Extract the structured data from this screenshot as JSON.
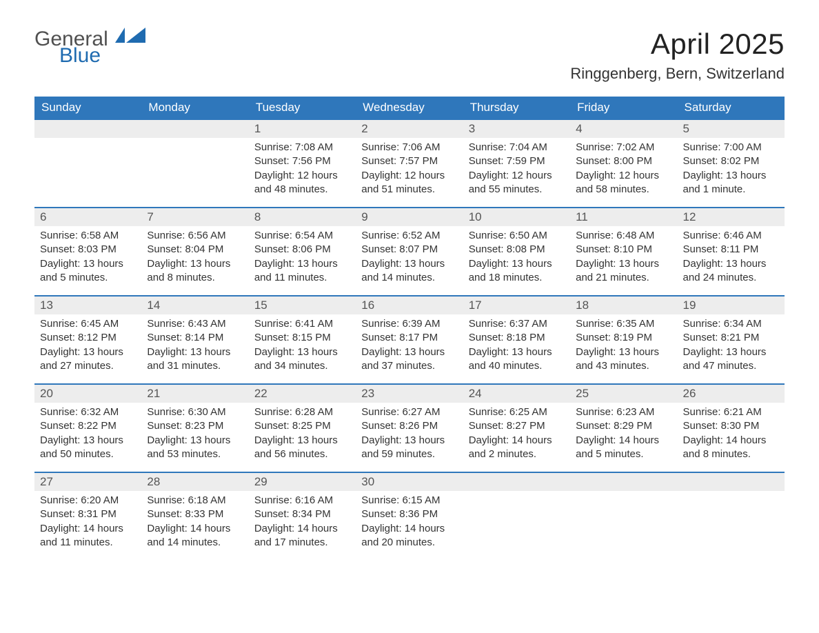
{
  "logo": {
    "word1": "General",
    "word2": "Blue"
  },
  "title": "April 2025",
  "location": "Ringgenberg, Bern, Switzerland",
  "colors": {
    "header_bg": "#2f77bb",
    "header_text": "#ffffff",
    "daynum_bg": "#ededed",
    "row_divider": "#2f77bb",
    "logo_word1": "#505050",
    "logo_word2": "#1f6bb0",
    "body_text": "#333333",
    "page_bg": "#ffffff"
  },
  "typography": {
    "title_fontsize_pt": 32,
    "location_fontsize_pt": 17,
    "header_fontsize_pt": 13,
    "daynum_fontsize_pt": 13,
    "body_fontsize_pt": 11
  },
  "weekdays": [
    "Sunday",
    "Monday",
    "Tuesday",
    "Wednesday",
    "Thursday",
    "Friday",
    "Saturday"
  ],
  "weeks": [
    [
      {
        "n": "",
        "sunrise": "",
        "sunset": "",
        "daylight": ""
      },
      {
        "n": "",
        "sunrise": "",
        "sunset": "",
        "daylight": ""
      },
      {
        "n": "1",
        "sunrise": "Sunrise: 7:08 AM",
        "sunset": "Sunset: 7:56 PM",
        "daylight": "Daylight: 12 hours and 48 minutes."
      },
      {
        "n": "2",
        "sunrise": "Sunrise: 7:06 AM",
        "sunset": "Sunset: 7:57 PM",
        "daylight": "Daylight: 12 hours and 51 minutes."
      },
      {
        "n": "3",
        "sunrise": "Sunrise: 7:04 AM",
        "sunset": "Sunset: 7:59 PM",
        "daylight": "Daylight: 12 hours and 55 minutes."
      },
      {
        "n": "4",
        "sunrise": "Sunrise: 7:02 AM",
        "sunset": "Sunset: 8:00 PM",
        "daylight": "Daylight: 12 hours and 58 minutes."
      },
      {
        "n": "5",
        "sunrise": "Sunrise: 7:00 AM",
        "sunset": "Sunset: 8:02 PM",
        "daylight": "Daylight: 13 hours and 1 minute."
      }
    ],
    [
      {
        "n": "6",
        "sunrise": "Sunrise: 6:58 AM",
        "sunset": "Sunset: 8:03 PM",
        "daylight": "Daylight: 13 hours and 5 minutes."
      },
      {
        "n": "7",
        "sunrise": "Sunrise: 6:56 AM",
        "sunset": "Sunset: 8:04 PM",
        "daylight": "Daylight: 13 hours and 8 minutes."
      },
      {
        "n": "8",
        "sunrise": "Sunrise: 6:54 AM",
        "sunset": "Sunset: 8:06 PM",
        "daylight": "Daylight: 13 hours and 11 minutes."
      },
      {
        "n": "9",
        "sunrise": "Sunrise: 6:52 AM",
        "sunset": "Sunset: 8:07 PM",
        "daylight": "Daylight: 13 hours and 14 minutes."
      },
      {
        "n": "10",
        "sunrise": "Sunrise: 6:50 AM",
        "sunset": "Sunset: 8:08 PM",
        "daylight": "Daylight: 13 hours and 18 minutes."
      },
      {
        "n": "11",
        "sunrise": "Sunrise: 6:48 AM",
        "sunset": "Sunset: 8:10 PM",
        "daylight": "Daylight: 13 hours and 21 minutes."
      },
      {
        "n": "12",
        "sunrise": "Sunrise: 6:46 AM",
        "sunset": "Sunset: 8:11 PM",
        "daylight": "Daylight: 13 hours and 24 minutes."
      }
    ],
    [
      {
        "n": "13",
        "sunrise": "Sunrise: 6:45 AM",
        "sunset": "Sunset: 8:12 PM",
        "daylight": "Daylight: 13 hours and 27 minutes."
      },
      {
        "n": "14",
        "sunrise": "Sunrise: 6:43 AM",
        "sunset": "Sunset: 8:14 PM",
        "daylight": "Daylight: 13 hours and 31 minutes."
      },
      {
        "n": "15",
        "sunrise": "Sunrise: 6:41 AM",
        "sunset": "Sunset: 8:15 PM",
        "daylight": "Daylight: 13 hours and 34 minutes."
      },
      {
        "n": "16",
        "sunrise": "Sunrise: 6:39 AM",
        "sunset": "Sunset: 8:17 PM",
        "daylight": "Daylight: 13 hours and 37 minutes."
      },
      {
        "n": "17",
        "sunrise": "Sunrise: 6:37 AM",
        "sunset": "Sunset: 8:18 PM",
        "daylight": "Daylight: 13 hours and 40 minutes."
      },
      {
        "n": "18",
        "sunrise": "Sunrise: 6:35 AM",
        "sunset": "Sunset: 8:19 PM",
        "daylight": "Daylight: 13 hours and 43 minutes."
      },
      {
        "n": "19",
        "sunrise": "Sunrise: 6:34 AM",
        "sunset": "Sunset: 8:21 PM",
        "daylight": "Daylight: 13 hours and 47 minutes."
      }
    ],
    [
      {
        "n": "20",
        "sunrise": "Sunrise: 6:32 AM",
        "sunset": "Sunset: 8:22 PM",
        "daylight": "Daylight: 13 hours and 50 minutes."
      },
      {
        "n": "21",
        "sunrise": "Sunrise: 6:30 AM",
        "sunset": "Sunset: 8:23 PM",
        "daylight": "Daylight: 13 hours and 53 minutes."
      },
      {
        "n": "22",
        "sunrise": "Sunrise: 6:28 AM",
        "sunset": "Sunset: 8:25 PM",
        "daylight": "Daylight: 13 hours and 56 minutes."
      },
      {
        "n": "23",
        "sunrise": "Sunrise: 6:27 AM",
        "sunset": "Sunset: 8:26 PM",
        "daylight": "Daylight: 13 hours and 59 minutes."
      },
      {
        "n": "24",
        "sunrise": "Sunrise: 6:25 AM",
        "sunset": "Sunset: 8:27 PM",
        "daylight": "Daylight: 14 hours and 2 minutes."
      },
      {
        "n": "25",
        "sunrise": "Sunrise: 6:23 AM",
        "sunset": "Sunset: 8:29 PM",
        "daylight": "Daylight: 14 hours and 5 minutes."
      },
      {
        "n": "26",
        "sunrise": "Sunrise: 6:21 AM",
        "sunset": "Sunset: 8:30 PM",
        "daylight": "Daylight: 14 hours and 8 minutes."
      }
    ],
    [
      {
        "n": "27",
        "sunrise": "Sunrise: 6:20 AM",
        "sunset": "Sunset: 8:31 PM",
        "daylight": "Daylight: 14 hours and 11 minutes."
      },
      {
        "n": "28",
        "sunrise": "Sunrise: 6:18 AM",
        "sunset": "Sunset: 8:33 PM",
        "daylight": "Daylight: 14 hours and 14 minutes."
      },
      {
        "n": "29",
        "sunrise": "Sunrise: 6:16 AM",
        "sunset": "Sunset: 8:34 PM",
        "daylight": "Daylight: 14 hours and 17 minutes."
      },
      {
        "n": "30",
        "sunrise": "Sunrise: 6:15 AM",
        "sunset": "Sunset: 8:36 PM",
        "daylight": "Daylight: 14 hours and 20 minutes."
      },
      {
        "n": "",
        "sunrise": "",
        "sunset": "",
        "daylight": ""
      },
      {
        "n": "",
        "sunrise": "",
        "sunset": "",
        "daylight": ""
      },
      {
        "n": "",
        "sunrise": "",
        "sunset": "",
        "daylight": ""
      }
    ]
  ]
}
